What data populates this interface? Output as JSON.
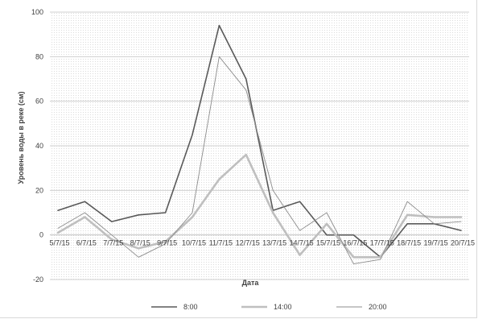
{
  "chart_data": {
    "type": "line",
    "title": "",
    "xlabel": "Дата",
    "ylabel": "Уровень воды в реке (см)",
    "ylim": [
      -20,
      100
    ],
    "yticks": [
      -20,
      0,
      20,
      40,
      60,
      80,
      100
    ],
    "grid": true,
    "legend": "bottom",
    "categories": [
      "5/7/15",
      "6/7/15",
      "7/7/15",
      "8/7/15",
      "9/7/15",
      "10/7/15",
      "11/7/15",
      "12/7/15",
      "13/7/15",
      "14/7/15",
      "15/7/15",
      "16/7/15",
      "17/7/15",
      "18/7/15",
      "19/7/15",
      "20/7/15"
    ],
    "series": [
      {
        "name": "8:00",
        "color": "#595959",
        "width": 1.6,
        "values": [
          11,
          15,
          6,
          9,
          10,
          45,
          94,
          70,
          11,
          15,
          0,
          0,
          -10,
          5,
          5,
          2
        ]
      },
      {
        "name": "14:00",
        "color": "#bfbfbf",
        "width": 2.6,
        "values": [
          1,
          8,
          -2,
          -6,
          -3,
          8,
          25,
          36,
          10,
          -9,
          5,
          -10,
          -10,
          9,
          8,
          8
        ]
      },
      {
        "name": "20:00",
        "color": "#8c8c8c",
        "width": 0.9,
        "values": [
          3,
          10,
          0,
          -10,
          -4,
          10,
          80,
          65,
          20,
          2,
          10,
          -13,
          -11,
          15,
          5,
          6
        ]
      }
    ]
  }
}
